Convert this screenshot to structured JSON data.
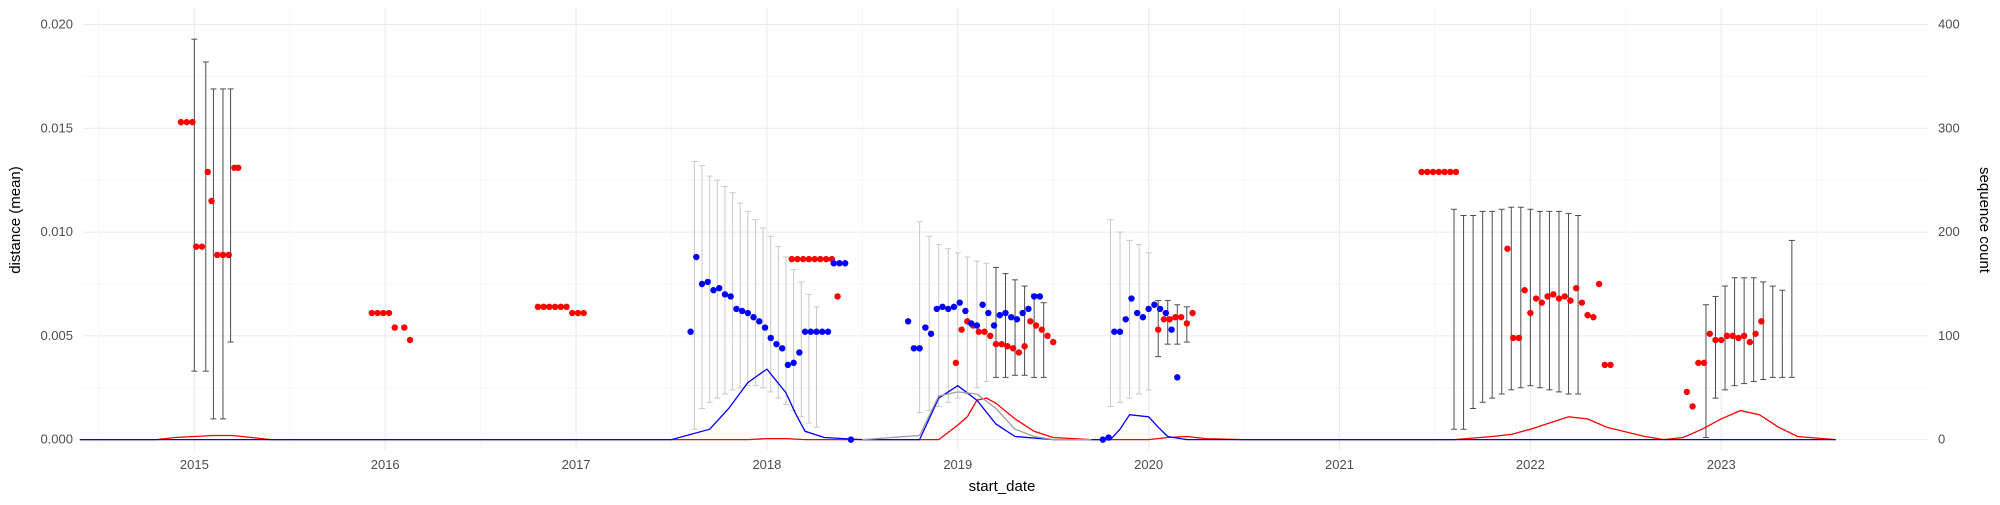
{
  "chart_data": {
    "type": "scatter",
    "title": "",
    "xlabel": "start_date",
    "ylabel": "distance (mean)",
    "y2label": "sequence count",
    "x_ticks": [
      "2015",
      "2016",
      "2017",
      "2018",
      "2019",
      "2020",
      "2021",
      "2022",
      "2023"
    ],
    "xlim": [
      "2014-06",
      "2024-02"
    ],
    "y_ticks": [
      "0.000",
      "0.005",
      "0.010",
      "0.015",
      "0.020"
    ],
    "ylim": [
      -0.0005,
      0.0208
    ],
    "y2_ticks": [
      "0",
      "100",
      "200",
      "300",
      "400"
    ],
    "y2lim": [
      -10,
      416
    ],
    "grid": true,
    "legend": "none",
    "colors": {
      "red": "#ff0000",
      "blue": "#0000ff",
      "errorbar_dark": "#4d4d4d",
      "errorbar_light": "#c8c8c8",
      "grid": "#ebebeb"
    },
    "series": [
      {
        "color": "red",
        "kind": "points",
        "x": [
          2014.93,
          2014.96,
          2014.99,
          2015.01,
          2015.04,
          2015.07,
          2015.09,
          2015.12,
          2015.15,
          2015.18,
          2015.21,
          2015.23,
          2015.93,
          2015.96,
          2015.99,
          2016.02,
          2016.05,
          2016.1,
          2016.13,
          2016.8,
          2016.83,
          2016.86,
          2016.89,
          2016.92,
          2016.95,
          2016.98,
          2017.01,
          2017.04,
          2018.13,
          2018.16,
          2018.19,
          2018.22,
          2018.25,
          2018.28,
          2018.31,
          2018.34,
          2018.37,
          2018.99,
          2019.02,
          2019.05,
          2019.08,
          2019.11,
          2019.14,
          2019.17,
          2019.2,
          2019.23,
          2019.26,
          2019.29,
          2019.32,
          2019.35,
          2019.38,
          2019.41,
          2019.44,
          2019.47,
          2019.5,
          2020.05,
          2020.08,
          2020.11,
          2020.14,
          2020.17,
          2020.2,
          2020.23,
          2021.43,
          2021.46,
          2021.49,
          2021.52,
          2021.55,
          2021.58,
          2021.61,
          2021.88,
          2021.91,
          2021.94,
          2021.97,
          2022.0,
          2022.03,
          2022.06,
          2022.09,
          2022.12,
          2022.15,
          2022.18,
          2022.21,
          2022.24,
          2022.27,
          2022.3,
          2022.33,
          2022.36,
          2022.39,
          2022.42,
          2022.82,
          2022.85,
          2022.88,
          2022.91,
          2022.94,
          2022.97,
          2023.0,
          2023.03,
          2023.06,
          2023.09,
          2023.12,
          2023.15,
          2023.18,
          2023.21
        ],
        "y": [
          0.0153,
          0.0153,
          0.0153,
          0.0093,
          0.0093,
          0.0129,
          0.0115,
          0.0089,
          0.0089,
          0.0089,
          0.0131,
          0.0131,
          0.0061,
          0.0061,
          0.0061,
          0.0061,
          0.0054,
          0.0054,
          0.0048,
          0.0064,
          0.0064,
          0.0064,
          0.0064,
          0.0064,
          0.0064,
          0.0061,
          0.0061,
          0.0061,
          0.0087,
          0.0087,
          0.0087,
          0.0087,
          0.0087,
          0.0087,
          0.0087,
          0.0087,
          0.0069,
          0.0037,
          0.0053,
          0.0057,
          0.0055,
          0.0052,
          0.0052,
          0.005,
          0.0046,
          0.0046,
          0.0045,
          0.0044,
          0.0042,
          0.0045,
          0.0057,
          0.0055,
          0.0053,
          0.005,
          0.0047,
          0.0053,
          0.0058,
          0.0058,
          0.0059,
          0.0059,
          0.0056,
          0.0061,
          0.0129,
          0.0129,
          0.0129,
          0.0129,
          0.0129,
          0.0129,
          0.0129,
          0.0092,
          0.0049,
          0.0049,
          0.0072,
          0.0061,
          0.0068,
          0.0066,
          0.0069,
          0.007,
          0.0068,
          0.0069,
          0.0067,
          0.0073,
          0.0066,
          0.006,
          0.0059,
          0.0075,
          0.0036,
          0.0036,
          0.0023,
          0.0016,
          0.0037,
          0.0037,
          0.0051,
          0.0048,
          0.0048,
          0.005,
          0.005,
          0.0049,
          0.005,
          0.0047,
          0.0051,
          0.0057
        ]
      },
      {
        "color": "blue",
        "kind": "points",
        "x": [
          2017.6,
          2017.63,
          2017.66,
          2017.69,
          2017.72,
          2017.75,
          2017.78,
          2017.81,
          2017.84,
          2017.87,
          2017.9,
          2017.93,
          2017.96,
          2017.99,
          2018.02,
          2018.05,
          2018.08,
          2018.11,
          2018.14,
          2018.17,
          2018.2,
          2018.23,
          2018.26,
          2018.29,
          2018.32,
          2018.35,
          2018.38,
          2018.41,
          2018.44,
          2018.74,
          2018.77,
          2018.8,
          2018.83,
          2018.86,
          2018.89,
          2018.92,
          2018.95,
          2018.98,
          2019.01,
          2019.04,
          2019.07,
          2019.1,
          2019.13,
          2019.16,
          2019.19,
          2019.22,
          2019.25,
          2019.28,
          2019.31,
          2019.34,
          2019.37,
          2019.4,
          2019.43,
          2019.76,
          2019.79,
          2019.82,
          2019.85,
          2019.88,
          2019.91,
          2019.94,
          2019.97,
          2020.0,
          2020.03,
          2020.06,
          2020.09,
          2020.12,
          2020.15
        ],
        "y": [
          0.0052,
          0.0088,
          0.0075,
          0.0076,
          0.0072,
          0.0073,
          0.007,
          0.0069,
          0.0063,
          0.0062,
          0.0061,
          0.0059,
          0.0057,
          0.0054,
          0.0049,
          0.0046,
          0.0044,
          0.0036,
          0.0037,
          0.0042,
          0.0052,
          0.0052,
          0.0052,
          0.0052,
          0.0052,
          0.0085,
          0.0085,
          0.0085,
          0.0,
          0.0057,
          0.0044,
          0.0044,
          0.0054,
          0.0051,
          0.0063,
          0.0064,
          0.0063,
          0.0064,
          0.0066,
          0.0062,
          0.0056,
          0.0055,
          0.0065,
          0.0061,
          0.0055,
          0.006,
          0.0061,
          0.0059,
          0.0058,
          0.0061,
          0.0063,
          0.0069,
          0.0069,
          0.0,
          0.0001,
          0.0052,
          0.0052,
          0.0058,
          0.0068,
          0.0061,
          0.0059,
          0.0063,
          0.0065,
          0.0063,
          0.0061,
          0.0053,
          0.003
        ]
      },
      {
        "color": "red",
        "kind": "count_line",
        "axis": "secondary",
        "x": [
          2014.4,
          2014.8,
          2014.9,
          2015.0,
          2015.1,
          2015.2,
          2015.3,
          2015.4,
          2015.8,
          2016.0,
          2016.2,
          2016.5,
          2017.0,
          2017.9,
          2018.0,
          2018.1,
          2018.2,
          2018.5,
          2018.9,
          2019.0,
          2019.05,
          2019.1,
          2019.15,
          2019.2,
          2019.3,
          2019.4,
          2019.5,
          2019.7,
          2020.0,
          2020.1,
          2020.2,
          2020.3,
          2020.5,
          2021.0,
          2021.5,
          2021.6,
          2021.8,
          2021.9,
          2022.0,
          2022.1,
          2022.2,
          2022.3,
          2022.4,
          2022.6,
          2022.7,
          2022.8,
          2022.9,
          2023.0,
          2023.1,
          2023.2,
          2023.3,
          2023.4,
          2023.6
        ],
        "y": [
          0,
          0,
          2,
          3,
          4,
          4,
          2,
          0,
          0,
          0,
          0,
          0,
          0,
          0,
          1,
          1,
          0,
          0,
          0,
          14,
          22,
          38,
          40,
          35,
          20,
          8,
          2,
          0,
          0,
          2,
          3,
          1,
          0,
          0,
          0,
          0,
          3,
          5,
          10,
          16,
          22,
          20,
          12,
          3,
          0,
          2,
          10,
          20,
          28,
          24,
          12,
          3,
          0
        ]
      },
      {
        "color": "blue",
        "kind": "count_line",
        "axis": "secondary",
        "x": [
          2014.4,
          2014.8,
          2015.0,
          2015.2,
          2015.4,
          2016.0,
          2017.0,
          2017.5,
          2017.7,
          2017.8,
          2017.9,
          2018.0,
          2018.1,
          2018.15,
          2018.2,
          2018.3,
          2018.5,
          2018.8,
          2018.9,
          2019.0,
          2019.1,
          2019.2,
          2019.3,
          2019.5,
          2019.8,
          2019.85,
          2019.9,
          2020.0,
          2020.05,
          2020.1,
          2020.2,
          2020.4,
          2021.0,
          2022.0,
          2023.0,
          2023.6
        ],
        "y": [
          0,
          0,
          0,
          0,
          0,
          0,
          0,
          0,
          10,
          30,
          55,
          68,
          45,
          25,
          8,
          2,
          0,
          0,
          40,
          52,
          38,
          15,
          3,
          0,
          0,
          10,
          24,
          22,
          12,
          3,
          0,
          0,
          0,
          0,
          0,
          0
        ]
      },
      {
        "color": "grey",
        "kind": "count_line",
        "axis": "secondary",
        "x": [
          2018.5,
          2018.8,
          2018.9,
          2019.0,
          2019.1,
          2019.2,
          2019.3,
          2019.4,
          2019.5,
          2019.7
        ],
        "y": [
          0,
          4,
          42,
          46,
          44,
          30,
          10,
          3,
          0,
          0
        ]
      }
    ],
    "error_bars": [
      {
        "x": 2015.0,
        "low": 0.0033,
        "high": 0.0193,
        "shade": "dark"
      },
      {
        "x": 2015.06,
        "low": 0.0033,
        "high": 0.0182,
        "shade": "dark"
      },
      {
        "x": 2015.1,
        "low": 0.001,
        "high": 0.0169,
        "shade": "dark"
      },
      {
        "x": 2015.15,
        "low": 0.001,
        "high": 0.0169,
        "shade": "dark"
      },
      {
        "x": 2015.19,
        "low": 0.0047,
        "high": 0.0169,
        "shade": "dark"
      },
      {
        "x": 2017.62,
        "low": 0.0005,
        "high": 0.0134,
        "shade": "light"
      },
      {
        "x": 2017.66,
        "low": 0.0015,
        "high": 0.0132,
        "shade": "light"
      },
      {
        "x": 2017.7,
        "low": 0.0018,
        "high": 0.0127,
        "shade": "light"
      },
      {
        "x": 2017.74,
        "low": 0.002,
        "high": 0.0125,
        "shade": "light"
      },
      {
        "x": 2017.78,
        "low": 0.0022,
        "high": 0.0122,
        "shade": "light"
      },
      {
        "x": 2017.82,
        "low": 0.0024,
        "high": 0.0119,
        "shade": "light"
      },
      {
        "x": 2017.86,
        "low": 0.0025,
        "high": 0.0114,
        "shade": "light"
      },
      {
        "x": 2017.9,
        "low": 0.0026,
        "high": 0.011,
        "shade": "light"
      },
      {
        "x": 2017.94,
        "low": 0.0026,
        "high": 0.0106,
        "shade": "light"
      },
      {
        "x": 2017.98,
        "low": 0.0025,
        "high": 0.0102,
        "shade": "light"
      },
      {
        "x": 2018.02,
        "low": 0.0023,
        "high": 0.0098,
        "shade": "light"
      },
      {
        "x": 2018.06,
        "low": 0.002,
        "high": 0.0093,
        "shade": "light"
      },
      {
        "x": 2018.1,
        "low": 0.0017,
        "high": 0.0088,
        "shade": "light"
      },
      {
        "x": 2018.14,
        "low": 0.0014,
        "high": 0.0082,
        "shade": "light"
      },
      {
        "x": 2018.18,
        "low": 0.0011,
        "high": 0.0076,
        "shade": "light"
      },
      {
        "x": 2018.22,
        "low": 0.0008,
        "high": 0.007,
        "shade": "light"
      },
      {
        "x": 2018.26,
        "low": 0.0006,
        "high": 0.0064,
        "shade": "light"
      },
      {
        "x": 2018.8,
        "low": 0.0013,
        "high": 0.0105,
        "shade": "light"
      },
      {
        "x": 2018.85,
        "low": 0.0014,
        "high": 0.0098,
        "shade": "light"
      },
      {
        "x": 2018.9,
        "low": 0.0016,
        "high": 0.0094,
        "shade": "light"
      },
      {
        "x": 2018.95,
        "low": 0.0018,
        "high": 0.0092,
        "shade": "light"
      },
      {
        "x": 2019.0,
        "low": 0.002,
        "high": 0.009,
        "shade": "light"
      },
      {
        "x": 2019.05,
        "low": 0.0022,
        "high": 0.0088,
        "shade": "light"
      },
      {
        "x": 2019.1,
        "low": 0.0025,
        "high": 0.0086,
        "shade": "light"
      },
      {
        "x": 2019.15,
        "low": 0.0028,
        "high": 0.0085,
        "shade": "light"
      },
      {
        "x": 2019.2,
        "low": 0.003,
        "high": 0.0083,
        "shade": "dark"
      },
      {
        "x": 2019.25,
        "low": 0.003,
        "high": 0.008,
        "shade": "dark"
      },
      {
        "x": 2019.3,
        "low": 0.0031,
        "high": 0.0077,
        "shade": "dark"
      },
      {
        "x": 2019.35,
        "low": 0.0031,
        "high": 0.0074,
        "shade": "dark"
      },
      {
        "x": 2019.4,
        "low": 0.003,
        "high": 0.007,
        "shade": "dark"
      },
      {
        "x": 2019.45,
        "low": 0.003,
        "high": 0.0066,
        "shade": "dark"
      },
      {
        "x": 2019.8,
        "low": 0.0016,
        "high": 0.0106,
        "shade": "light"
      },
      {
        "x": 2019.85,
        "low": 0.0018,
        "high": 0.01,
        "shade": "light"
      },
      {
        "x": 2019.9,
        "low": 0.002,
        "high": 0.0096,
        "shade": "light"
      },
      {
        "x": 2019.95,
        "low": 0.0022,
        "high": 0.0094,
        "shade": "light"
      },
      {
        "x": 2020.0,
        "low": 0.0024,
        "high": 0.009,
        "shade": "light"
      },
      {
        "x": 2020.05,
        "low": 0.004,
        "high": 0.0067,
        "shade": "dark"
      },
      {
        "x": 2020.1,
        "low": 0.0046,
        "high": 0.0067,
        "shade": "dark"
      },
      {
        "x": 2020.15,
        "low": 0.0046,
        "high": 0.0065,
        "shade": "dark"
      },
      {
        "x": 2020.2,
        "low": 0.0047,
        "high": 0.0064,
        "shade": "dark"
      },
      {
        "x": 2021.6,
        "low": 0.0005,
        "high": 0.0111,
        "shade": "dark"
      },
      {
        "x": 2021.65,
        "low": 0.0005,
        "high": 0.0108,
        "shade": "dark"
      },
      {
        "x": 2021.7,
        "low": 0.0015,
        "high": 0.0108,
        "shade": "dark"
      },
      {
        "x": 2021.75,
        "low": 0.0018,
        "high": 0.011,
        "shade": "dark"
      },
      {
        "x": 2021.8,
        "low": 0.002,
        "high": 0.011,
        "shade": "dark"
      },
      {
        "x": 2021.85,
        "low": 0.0022,
        "high": 0.0111,
        "shade": "dark"
      },
      {
        "x": 2021.9,
        "low": 0.0024,
        "high": 0.0112,
        "shade": "dark"
      },
      {
        "x": 2021.95,
        "low": 0.0025,
        "high": 0.0112,
        "shade": "dark"
      },
      {
        "x": 2022.0,
        "low": 0.0026,
        "high": 0.0111,
        "shade": "dark"
      },
      {
        "x": 2022.05,
        "low": 0.0025,
        "high": 0.011,
        "shade": "dark"
      },
      {
        "x": 2022.1,
        "low": 0.0024,
        "high": 0.011,
        "shade": "dark"
      },
      {
        "x": 2022.15,
        "low": 0.0023,
        "high": 0.011,
        "shade": "dark"
      },
      {
        "x": 2022.2,
        "low": 0.0022,
        "high": 0.0109,
        "shade": "dark"
      },
      {
        "x": 2022.25,
        "low": 0.0022,
        "high": 0.0108,
        "shade": "dark"
      },
      {
        "x": 2022.92,
        "low": 0.0001,
        "high": 0.0065,
        "shade": "dark"
      },
      {
        "x": 2022.97,
        "low": 0.002,
        "high": 0.0069,
        "shade": "dark"
      },
      {
        "x": 2023.02,
        "low": 0.0024,
        "high": 0.0074,
        "shade": "dark"
      },
      {
        "x": 2023.07,
        "low": 0.0026,
        "high": 0.0078,
        "shade": "dark"
      },
      {
        "x": 2023.12,
        "low": 0.0027,
        "high": 0.0078,
        "shade": "dark"
      },
      {
        "x": 2023.17,
        "low": 0.0028,
        "high": 0.0078,
        "shade": "dark"
      },
      {
        "x": 2023.22,
        "low": 0.0029,
        "high": 0.0076,
        "shade": "dark"
      },
      {
        "x": 2023.27,
        "low": 0.003,
        "high": 0.0074,
        "shade": "dark"
      },
      {
        "x": 2023.32,
        "low": 0.003,
        "high": 0.0072,
        "shade": "dark"
      },
      {
        "x": 2023.37,
        "low": 0.003,
        "high": 0.0096,
        "shade": "dark"
      }
    ]
  }
}
